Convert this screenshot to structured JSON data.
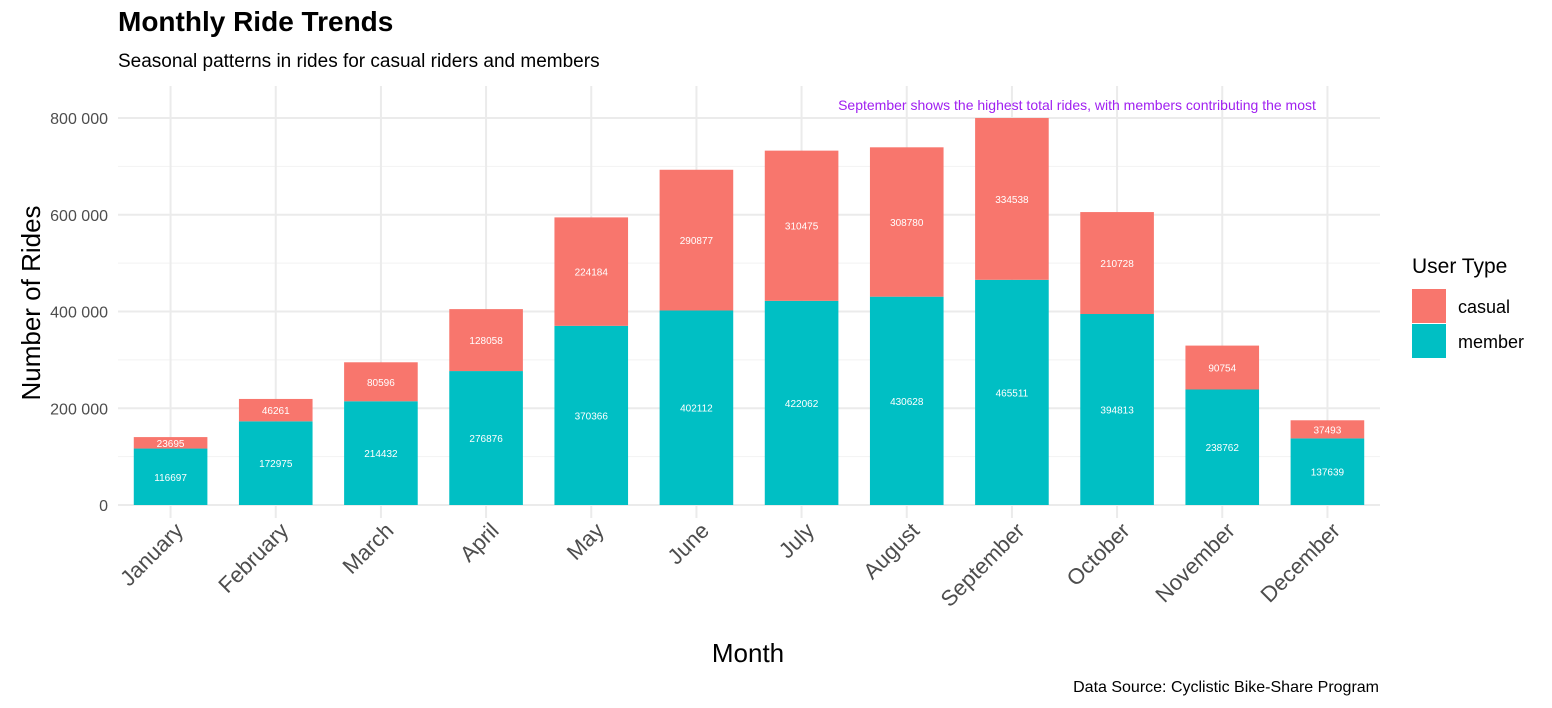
{
  "chart_data": {
    "type": "bar",
    "stacked": true,
    "title": "Monthly Ride Trends",
    "subtitle": "Seasonal patterns in rides for casual riders and members",
    "caption": "Data Source: Cyclistic Bike-Share Program",
    "xlabel": "Month",
    "ylabel": "Number of Rides",
    "ylim": [
      0,
      800000
    ],
    "yticks": [
      0,
      200000,
      400000,
      600000,
      800000
    ],
    "ytick_labels": [
      "0",
      "200 000",
      "400 000",
      "600 000",
      "800 000"
    ],
    "grid": true,
    "categories": [
      "January",
      "February",
      "March",
      "April",
      "May",
      "June",
      "July",
      "August",
      "September",
      "October",
      "November",
      "December"
    ],
    "series": [
      {
        "name": "member",
        "color": "#00BFC4",
        "values": [
          116697,
          172975,
          214432,
          276876,
          370366,
          402112,
          422062,
          430628,
          465511,
          394813,
          238762,
          137639
        ]
      },
      {
        "name": "casual",
        "color": "#F8766D",
        "values": [
          23695,
          46261,
          80596,
          128058,
          224184,
          290877,
          310475,
          308780,
          334538,
          210728,
          90754,
          37493
        ]
      }
    ],
    "legend": {
      "title": "User Type",
      "position": "right",
      "entries": [
        {
          "label": "casual",
          "color": "#F8766D"
        },
        {
          "label": "member",
          "color": "#00BFC4"
        }
      ]
    },
    "annotation": {
      "text": "September shows the highest total rides, with members contributing the most",
      "color": "#A020F0"
    }
  }
}
